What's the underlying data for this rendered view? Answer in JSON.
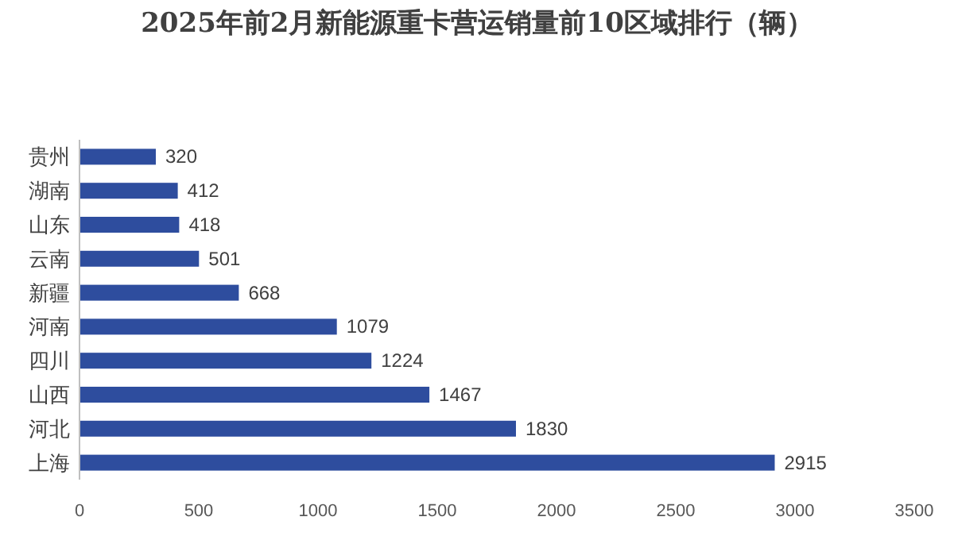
{
  "chart_data": {
    "type": "bar",
    "orientation": "horizontal",
    "title": "2025年前2月新能源重卡营运销量前10区域排行（辆）",
    "categories": [
      "贵州",
      "湖南",
      "山东",
      "云南",
      "新疆",
      "河南",
      "四川",
      "山西",
      "河北",
      "上海"
    ],
    "values": [
      320,
      412,
      418,
      501,
      668,
      1079,
      1224,
      1467,
      1830,
      2915
    ],
    "color": "#2e4d9e",
    "xlim": [
      0,
      3500
    ],
    "xticks": [
      0,
      500,
      1000,
      1500,
      2000,
      2500,
      3000,
      3500
    ],
    "data_labels": true,
    "grid": false
  }
}
